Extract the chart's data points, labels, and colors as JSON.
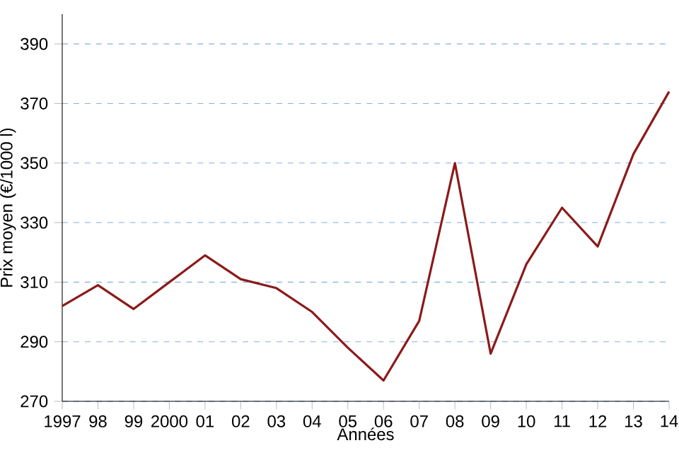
{
  "chart_data": {
    "type": "line",
    "xlabel": "Années",
    "ylabel": "Prix moyen (€/1000 l)",
    "categories": [
      "1997",
      "98",
      "99",
      "2000",
      "01",
      "02",
      "03",
      "04",
      "05",
      "06",
      "07",
      "08",
      "09",
      "10",
      "11",
      "12",
      "13",
      "14"
    ],
    "series": [
      {
        "color": "#8b1a1a",
        "values": [
          302,
          309,
          301,
          310,
          319,
          311,
          308,
          300,
          288,
          277,
          297,
          350,
          286,
          316,
          335,
          322,
          353,
          374
        ]
      }
    ],
    "ylim": [
      270,
      400
    ],
    "yticks": [
      270,
      290,
      310,
      330,
      350,
      370,
      390
    ],
    "grid": "y",
    "line_style": "solid",
    "marker": "none"
  }
}
